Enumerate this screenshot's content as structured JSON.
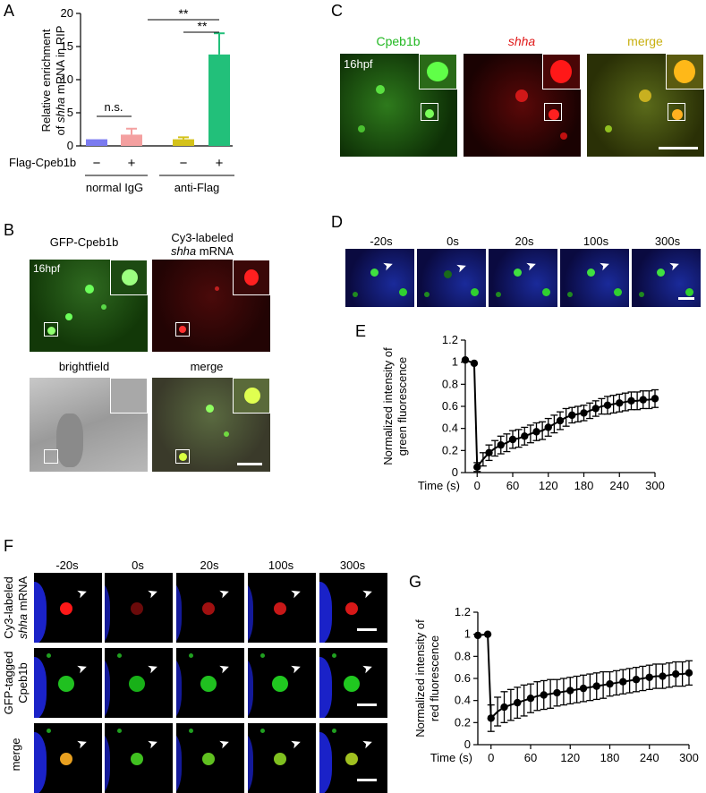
{
  "panels": {
    "A": "A",
    "B": "B",
    "C": "C",
    "D": "D",
    "E": "E",
    "F": "F",
    "G": "G"
  },
  "panelA": {
    "chart_data": {
      "type": "bar",
      "ylabel_line1": "Relative enrichment",
      "ylabel_line2_pre": "of ",
      "ylabel_line2_it": "shha",
      "ylabel_line2_post": " mRNA in RIP",
      "ylim": [
        0,
        20
      ],
      "yticks": [
        "0",
        "5",
        "10",
        "15",
        "20"
      ],
      "values": [
        1.0,
        1.7,
        1.0,
        13.8
      ],
      "errors": [
        0,
        0.9,
        0.3,
        3.2
      ],
      "colors": [
        "#7b7bf0",
        "#f4a0a0",
        "#d4c21a",
        "#22c07a"
      ],
      "row_label": "Flag-Cpeb1b",
      "signs": [
        "−",
        "+",
        "−",
        "+"
      ],
      "groups": [
        "normal IgG",
        "anti-Flag"
      ],
      "annotations": [
        "n.s.",
        "**",
        "**"
      ]
    }
  },
  "panelB": {
    "titles": [
      "GFP-Cpeb1b",
      "Cy3-labeled",
      "brightfield",
      "merge"
    ],
    "title2_it": "shha",
    "title2_post": " mRNA",
    "stage": "16hpf"
  },
  "panelC": {
    "titles": [
      "Cpeb1b",
      "shha",
      "merge"
    ],
    "stage": "16hpf"
  },
  "times": [
    "-20s",
    "0s",
    "20s",
    "100s",
    "300s"
  ],
  "panelE": {
    "chart_data": {
      "type": "line",
      "ylabel_line1": "Normalized intensity of",
      "ylabel_line2": "green fluorescence",
      "xlabel": "Time (s)",
      "xlim": [
        -20,
        300
      ],
      "ylim": [
        0,
        1.2
      ],
      "xticks": [
        "0",
        "60",
        "120",
        "180",
        "240",
        "300"
      ],
      "yticks": [
        "0",
        "0.2",
        "0.4",
        "0.6",
        "0.8",
        "1",
        "1.2"
      ],
      "x": [
        -20,
        -5,
        0,
        10,
        20,
        30,
        40,
        50,
        60,
        70,
        80,
        90,
        100,
        110,
        120,
        130,
        140,
        150,
        160,
        170,
        180,
        190,
        200,
        210,
        220,
        230,
        240,
        250,
        260,
        270,
        280,
        290,
        300
      ],
      "y": [
        1.02,
        0.99,
        0.05,
        0.12,
        0.18,
        0.22,
        0.25,
        0.27,
        0.3,
        0.31,
        0.33,
        0.35,
        0.37,
        0.38,
        0.41,
        0.44,
        0.47,
        0.5,
        0.52,
        0.53,
        0.54,
        0.56,
        0.58,
        0.6,
        0.61,
        0.62,
        0.63,
        0.64,
        0.65,
        0.65,
        0.66,
        0.66,
        0.67
      ],
      "err": [
        0,
        0,
        0.04,
        0.06,
        0.07,
        0.07,
        0.08,
        0.08,
        0.08,
        0.08,
        0.08,
        0.08,
        0.08,
        0.08,
        0.08,
        0.08,
        0.08,
        0.08,
        0.07,
        0.07,
        0.07,
        0.07,
        0.07,
        0.07,
        0.08,
        0.08,
        0.08,
        0.08,
        0.08,
        0.08,
        0.08,
        0.08,
        0.08
      ]
    }
  },
  "panelF": {
    "row1_line1": "Cy3-labeled",
    "row1_line2_it": "shha",
    "row1_line2_post": " mRNA",
    "row2_line1": "GFP-tagged",
    "row2_line2": "Cpeb1b",
    "row3": "merge"
  },
  "panelG": {
    "chart_data": {
      "type": "line",
      "ylabel_line1": "Normalized intensity of",
      "ylabel_line2": "red fluorescence",
      "xlabel": "Time (s)",
      "xlim": [
        -20,
        300
      ],
      "ylim": [
        0,
        1.2
      ],
      "xticks": [
        "0",
        "60",
        "120",
        "180",
        "240",
        "300"
      ],
      "yticks": [
        "0",
        "0.2",
        "0.4",
        "0.6",
        "0.8",
        "1",
        "1.2"
      ],
      "x": [
        -20,
        -5,
        0,
        10,
        20,
        30,
        40,
        50,
        60,
        70,
        80,
        90,
        100,
        110,
        120,
        130,
        140,
        150,
        160,
        170,
        180,
        190,
        200,
        210,
        220,
        230,
        240,
        250,
        260,
        270,
        280,
        290,
        300
      ],
      "y": [
        0.99,
        1.0,
        0.24,
        0.3,
        0.34,
        0.36,
        0.38,
        0.4,
        0.42,
        0.44,
        0.45,
        0.46,
        0.47,
        0.48,
        0.49,
        0.5,
        0.51,
        0.52,
        0.53,
        0.54,
        0.55,
        0.56,
        0.57,
        0.58,
        0.59,
        0.6,
        0.61,
        0.62,
        0.62,
        0.63,
        0.64,
        0.64,
        0.65
      ],
      "err": [
        0,
        0,
        0.12,
        0.13,
        0.14,
        0.14,
        0.14,
        0.14,
        0.13,
        0.13,
        0.13,
        0.13,
        0.12,
        0.12,
        0.12,
        0.12,
        0.12,
        0.12,
        0.12,
        0.12,
        0.11,
        0.11,
        0.11,
        0.11,
        0.11,
        0.11,
        0.11,
        0.11,
        0.11,
        0.11,
        0.11,
        0.11,
        0.11
      ]
    }
  }
}
